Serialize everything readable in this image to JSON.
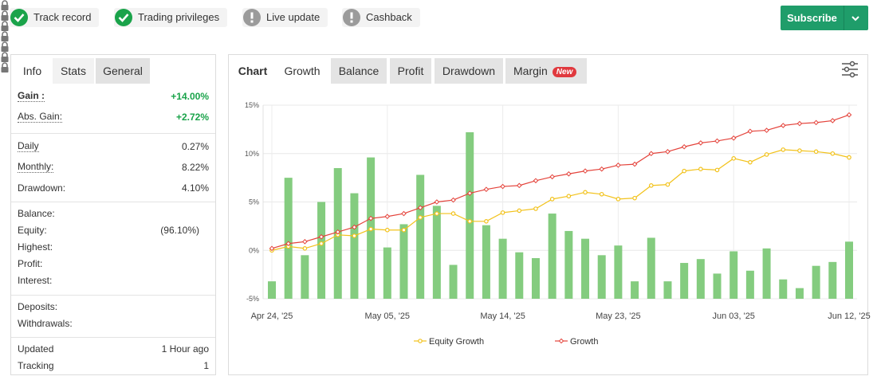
{
  "badges": [
    {
      "text": "Track record",
      "checked": true
    },
    {
      "text": "Trading privileges",
      "checked": true
    },
    {
      "text": "Live update",
      "checked": false
    },
    {
      "text": "Cashback",
      "checked": false
    }
  ],
  "subscribe": "Subscribe",
  "left_panel": {
    "tabs": [
      "Info",
      "Stats",
      "General"
    ],
    "sections": [
      [
        {
          "label": "Gain :",
          "value": "+14.00%",
          "color": "#1aa34a",
          "underlined": true,
          "bold": true
        },
        {
          "label": "Abs. Gain:",
          "value": "+2.72%",
          "color": "#1aa34a",
          "underlined": true
        }
      ],
      [
        {
          "label": "Daily",
          "value": "0.27%",
          "underlined": true
        },
        {
          "label": "Monthly:",
          "value": "8.22%",
          "underlined": true
        },
        {
          "label": "Drawdown:",
          "value": "4.10%"
        }
      ],
      [
        {
          "label": "Balance:",
          "locked": true
        },
        {
          "label": "Equity:",
          "value": "(96.10%)",
          "locked": true
        },
        {
          "label": "Highest:",
          "locked": true
        },
        {
          "label": "Profit:",
          "locked": true
        },
        {
          "label": "Interest:",
          "locked": true
        }
      ],
      [
        {
          "label": "Deposits:",
          "locked": true
        },
        {
          "label": "Withdrawals:",
          "locked": true
        }
      ],
      [
        {
          "label": "Updated",
          "value": "1 Hour ago"
        },
        {
          "label": "Tracking",
          "value": "1"
        }
      ]
    ]
  },
  "right_panel": {
    "tabs": [
      "Chart",
      "Growth",
      "Balance",
      "Profit",
      "Drawdown",
      "Margin"
    ],
    "new_badge": "New"
  },
  "chart_data": {
    "type": "bar-line",
    "categories": [
      "Apr 24, '25",
      null,
      null,
      null,
      null,
      null,
      null,
      "May 05, '25",
      null,
      null,
      null,
      null,
      null,
      null,
      "May 14, '25",
      null,
      null,
      null,
      null,
      null,
      null,
      "May 23, '25",
      null,
      null,
      null,
      null,
      null,
      null,
      "Jun 03, '25",
      null,
      null,
      null,
      null,
      null,
      null,
      "Jun 12, '25"
    ],
    "series": [
      {
        "type": "bar",
        "color": "#84cc7f",
        "values": [
          -3.2,
          7.5,
          -0.5,
          5.0,
          8.5,
          5.9,
          9.6,
          0.3,
          2.7,
          7.8,
          4.6,
          -1.5,
          12.2,
          2.6,
          1.2,
          -0.2,
          -0.8,
          3.8,
          2.0,
          1.2,
          -0.5,
          0.5,
          -3.2,
          1.3,
          -3.2,
          -1.3,
          -0.9,
          -2.4,
          -0.1,
          -2.1,
          0.2,
          -3.0,
          -3.9,
          -1.6,
          -1.2,
          0.9
        ]
      },
      {
        "type": "line",
        "name": "Equity Growth",
        "color": "#f2c21b",
        "marker": "circle",
        "values": [
          0.0,
          0.4,
          0.2,
          0.7,
          1.6,
          1.5,
          2.2,
          2.1,
          2.1,
          3.4,
          3.8,
          3.8,
          3.0,
          3.0,
          3.9,
          4.1,
          4.3,
          5.3,
          5.6,
          6.0,
          5.8,
          5.3,
          5.4,
          6.7,
          6.8,
          8.2,
          8.4,
          8.3,
          9.5,
          9.1,
          9.9,
          10.4,
          10.3,
          10.2,
          10.0,
          9.6
        ]
      },
      {
        "type": "line",
        "name": "Growth",
        "color": "#e4433b",
        "marker": "diamond",
        "values": [
          0.2,
          0.7,
          0.9,
          1.4,
          1.9,
          2.4,
          3.3,
          3.5,
          3.8,
          4.4,
          5.0,
          5.2,
          5.9,
          6.3,
          6.6,
          6.7,
          7.2,
          7.6,
          7.9,
          8.2,
          8.4,
          8.8,
          8.9,
          10.0,
          10.2,
          10.7,
          11.1,
          11.3,
          11.6,
          12.3,
          12.4,
          12.9,
          13.1,
          13.2,
          13.4,
          14.0
        ]
      }
    ],
    "ylim": [
      -5,
      15
    ],
    "yticks": [
      {
        "value": 15,
        "label": "15%"
      },
      {
        "value": 10,
        "label": "10%"
      },
      {
        "value": 5,
        "label": "5%"
      },
      {
        "value": 0,
        "label": "0%"
      },
      {
        "value": -5,
        "label": "-5%"
      }
    ],
    "grid": true,
    "legend": "bottom"
  }
}
